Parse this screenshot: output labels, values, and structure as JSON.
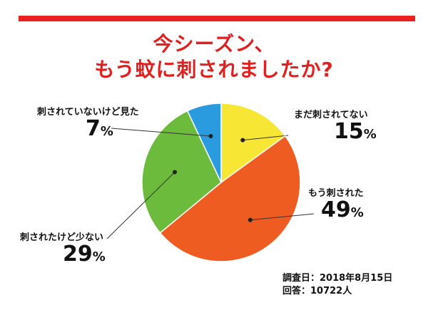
{
  "title": {
    "line1": "今シーズン、",
    "line2": "もう蚊に刺されましたか?"
  },
  "chart_data": {
    "type": "pie",
    "categories": [
      "まだ刺されてない",
      "もう刺された",
      "刺されたけど少ない",
      "刺されていないけど見た"
    ],
    "values": [
      15,
      49,
      29,
      7
    ],
    "unit": "%",
    "colors": [
      "#f7e634",
      "#ee5c22",
      "#6dbb3c",
      "#2b9be0"
    ]
  },
  "labels": [
    {
      "name": "まだ刺されてない",
      "value": "15"
    },
    {
      "name": "もう刺された",
      "value": "49"
    },
    {
      "name": "刺されたけど少ない",
      "value": "29"
    },
    {
      "name": "刺されていないけど見た",
      "value": "7"
    }
  ],
  "footer": {
    "survey_date": "調査日：2018年8月15日",
    "responses": "回答：10722人"
  }
}
